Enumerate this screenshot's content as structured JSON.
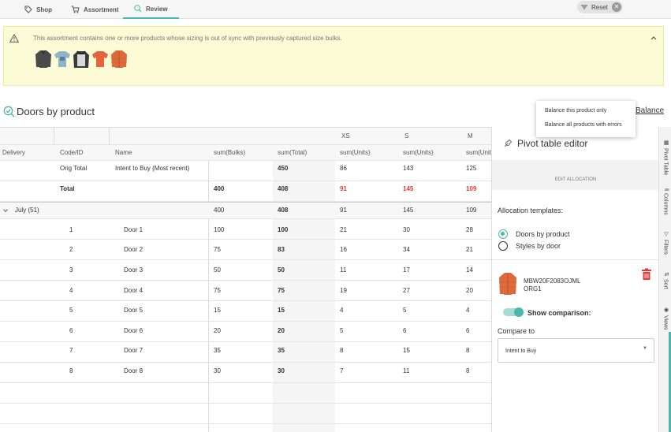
{
  "nav": {
    "tabs": [
      {
        "label": "Shop",
        "icon": "tag-icon"
      },
      {
        "label": "Assortment",
        "icon": "cart-icon"
      },
      {
        "label": "Review",
        "icon": "search-check-icon"
      }
    ],
    "active_tab": "Review",
    "reset_label": "Reset"
  },
  "warning": {
    "text": "This assortment contains one or more products whose sizing is out of sync with previously captured size bulks."
  },
  "section": {
    "title": "Doors by product",
    "balance_link": "Balance"
  },
  "balance_menu": {
    "items": [
      "Balance this product only",
      "Balance all products with errors"
    ]
  },
  "grid": {
    "size_headers": {
      "xs": "XS",
      "s": "S",
      "m": "M"
    },
    "columns": {
      "delivery": "Delivery",
      "code": "Code/ID",
      "name": "Name",
      "bulks": "sum(Bulks)",
      "total": "sum(Total)",
      "units_xs": "sum(Units)",
      "units_s": "sum(Units)",
      "units_m": "sum(Units)"
    },
    "orig_total": {
      "code": "Orig Total",
      "name": "Intent to Buy (Most recent)",
      "total": "450",
      "xs": "86",
      "s": "143",
      "m": "125"
    },
    "total": {
      "code": "Total",
      "bulks": "400",
      "total": "408",
      "xs": "91",
      "s": "145",
      "m": "109"
    },
    "group": {
      "label": "July (51)",
      "bulks": "400",
      "total": "408",
      "xs": "91",
      "s": "145",
      "m": "109"
    },
    "rows": [
      {
        "code": "1",
        "name": "Door 1",
        "bulks": "100",
        "total": "100",
        "xs": "21",
        "s": "30",
        "m": "28"
      },
      {
        "code": "2",
        "name": "Door 2",
        "bulks": "75",
        "total": "83",
        "xs": "16",
        "s": "34",
        "m": "21"
      },
      {
        "code": "3",
        "name": "Door 3",
        "bulks": "50",
        "total": "50",
        "xs": "11",
        "s": "17",
        "m": "14"
      },
      {
        "code": "4",
        "name": "Door 4",
        "bulks": "75",
        "total": "75",
        "xs": "19",
        "s": "27",
        "m": "20"
      },
      {
        "code": "5",
        "name": "Door 5",
        "bulks": "15",
        "total": "15",
        "xs": "4",
        "s": "5",
        "m": "4"
      },
      {
        "code": "6",
        "name": "Door 6",
        "bulks": "20",
        "total": "20",
        "xs": "5",
        "s": "6",
        "m": "6"
      },
      {
        "code": "7",
        "name": "Door 7",
        "bulks": "35",
        "total": "35",
        "xs": "8",
        "s": "15",
        "m": "8"
      },
      {
        "code": "8",
        "name": "Door 8",
        "bulks": "30",
        "total": "30",
        "xs": "7",
        "s": "11",
        "m": "8"
      }
    ]
  },
  "pivot_editor": {
    "title": "Pivot table editor",
    "edit_allocation": "EDIT ALLOCATION",
    "templates_label": "Allocation templates:",
    "templates": [
      "Doors by product",
      "Styles by door"
    ],
    "selected_template": "Doors by product",
    "product_code": "MBW20F2083OJML",
    "product_org": "ORG1",
    "show_comparison_label": "Show comparison:",
    "show_comparison_on": true,
    "compare_to_label": "Compare to",
    "compare_to_value": "Intent to Buy"
  },
  "side_tabs": [
    "Pivot Table",
    "Columns",
    "Filters",
    "Sort",
    "Views"
  ],
  "colors": {
    "accent": "#4db6ac",
    "error": "#e53935",
    "warning_bg": "#fbfbd5"
  }
}
